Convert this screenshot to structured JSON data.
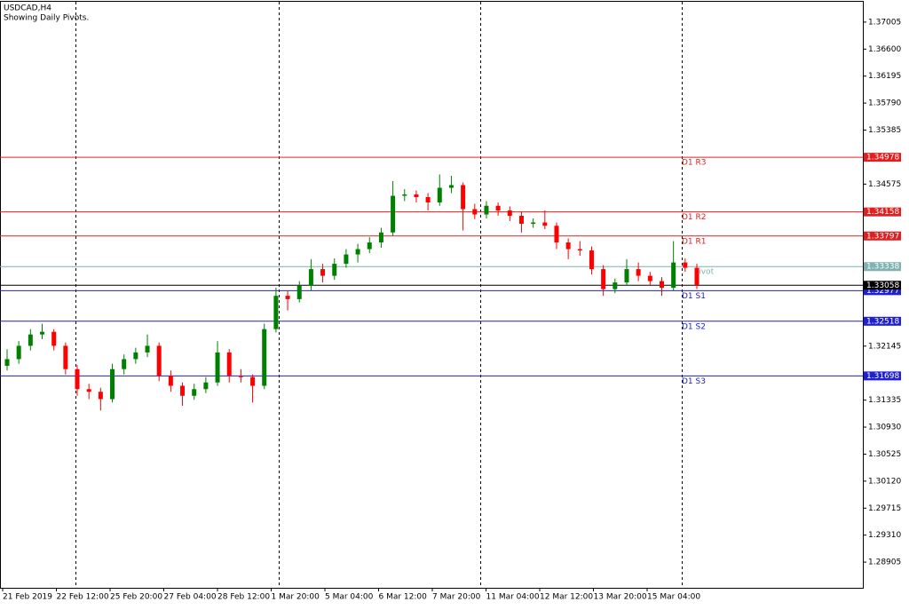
{
  "chart_data": {
    "type": "candlestick",
    "title": "USDCAD,H4",
    "subtitle": "Showing Daily Pivots.",
    "up_color": "#008000",
    "down_color": "#ff0000",
    "ylim": [
      1.2852,
      1.3731
    ],
    "yticks": [
      {
        "value": 1.37005,
        "label": "1.37005"
      },
      {
        "value": 1.366,
        "label": "1.36600"
      },
      {
        "value": 1.36195,
        "label": "1.36195"
      },
      {
        "value": 1.3579,
        "label": "1.35790"
      },
      {
        "value": 1.35385,
        "label": "1.35385"
      },
      {
        "value": 1.34575,
        "label": "1.34575"
      },
      {
        "value": 1.32145,
        "label": "1.32145"
      },
      {
        "value": 1.31335,
        "label": "1.31335"
      },
      {
        "value": 1.3093,
        "label": "1.30930"
      },
      {
        "value": 1.30525,
        "label": "1.30525"
      },
      {
        "value": 1.3012,
        "label": "1.30120"
      },
      {
        "value": 1.29715,
        "label": "1.29715"
      },
      {
        "value": 1.2931,
        "label": "1.29310"
      },
      {
        "value": 1.28905,
        "label": "1.28905"
      }
    ],
    "xtick_labels": [
      "21 Feb 2019",
      "22 Feb 12:00",
      "25 Feb 20:00",
      "27 Feb 04:00",
      "28 Feb 12:00",
      "1 Mar 20:00",
      "5 Mar 04:00",
      "6 Mar 12:00",
      "7 Mar 20:00",
      "11 Mar 04:00",
      "12 Mar 12:00",
      "13 Mar 20:00",
      "15 Mar 04:00"
    ],
    "levels": [
      {
        "name": "D1 R3",
        "value": 1.34978,
        "label": "1.34978",
        "color": "#e02020"
      },
      {
        "name": "D1 R2",
        "value": 1.34158,
        "label": "1.34158",
        "color": "#e02020"
      },
      {
        "name": "D1 R1",
        "value": 1.33797,
        "label": "1.33797",
        "color": "#e02020"
      },
      {
        "name": "Pivot",
        "value": 1.33338,
        "label": "1.33338",
        "color": "#7fb2b2"
      },
      {
        "name": "D1 S1",
        "value": 1.32977,
        "label": "1.32977",
        "color": "#2020d0"
      },
      {
        "name": "D1 S2",
        "value": 1.32518,
        "label": "1.32518",
        "color": "#2020d0"
      },
      {
        "name": "D1 S3",
        "value": 1.31698,
        "label": "1.31698",
        "color": "#2020d0"
      }
    ],
    "current_price": {
      "value": 1.33058,
      "label": "1.33058",
      "color": "#000000"
    },
    "candles": [
      [
        1.3185,
        1.321,
        1.3178,
        1.3195
      ],
      [
        1.3195,
        1.3222,
        1.3188,
        1.3215
      ],
      [
        1.3215,
        1.324,
        1.3208,
        1.3232
      ],
      [
        1.3232,
        1.3248,
        1.3225,
        1.3236
      ],
      [
        1.3236,
        1.324,
        1.3208,
        1.3215
      ],
      [
        1.3215,
        1.322,
        1.3172,
        1.318
      ],
      [
        1.318,
        1.3186,
        1.314,
        1.315
      ],
      [
        1.315,
        1.3158,
        1.3135,
        1.3146
      ],
      [
        1.3146,
        1.3152,
        1.3118,
        1.3135
      ],
      [
        1.3135,
        1.3188,
        1.313,
        1.318
      ],
      [
        1.318,
        1.3202,
        1.3172,
        1.3195
      ],
      [
        1.3195,
        1.3212,
        1.3188,
        1.3205
      ],
      [
        1.3205,
        1.3232,
        1.3198,
        1.3215
      ],
      [
        1.3215,
        1.322,
        1.3162,
        1.317
      ],
      [
        1.317,
        1.3178,
        1.3146,
        1.3155
      ],
      [
        1.3155,
        1.316,
        1.3125,
        1.314
      ],
      [
        1.314,
        1.3158,
        1.3134,
        1.315
      ],
      [
        1.315,
        1.3168,
        1.3144,
        1.316
      ],
      [
        1.316,
        1.3222,
        1.3155,
        1.3205
      ],
      [
        1.3205,
        1.321,
        1.316,
        1.317
      ],
      [
        1.317,
        1.318,
        1.316,
        1.3168
      ],
      [
        1.3168,
        1.3172,
        1.313,
        1.3155
      ],
      [
        1.3155,
        1.3248,
        1.315,
        1.324
      ],
      [
        1.324,
        1.3302,
        1.3235,
        1.329
      ],
      [
        1.329,
        1.3298,
        1.3268,
        1.3285
      ],
      [
        1.3285,
        1.3312,
        1.328,
        1.3305
      ],
      [
        1.3305,
        1.3345,
        1.3298,
        1.333
      ],
      [
        1.333,
        1.3338,
        1.331,
        1.332
      ],
      [
        1.332,
        1.3346,
        1.3314,
        1.3338
      ],
      [
        1.3338,
        1.336,
        1.3332,
        1.3352
      ],
      [
        1.3352,
        1.3368,
        1.334,
        1.336
      ],
      [
        1.336,
        1.3378,
        1.3354,
        1.337
      ],
      [
        1.337,
        1.3392,
        1.3362,
        1.3385
      ],
      [
        1.3385,
        1.3462,
        1.338,
        1.344
      ],
      [
        1.344,
        1.345,
        1.3432,
        1.3442
      ],
      [
        1.3442,
        1.3448,
        1.343,
        1.3438
      ],
      [
        1.3438,
        1.3444,
        1.3418,
        1.343
      ],
      [
        1.343,
        1.3472,
        1.3425,
        1.3452
      ],
      [
        1.3452,
        1.347,
        1.3444,
        1.3456
      ],
      [
        1.3456,
        1.346,
        1.3388,
        1.342
      ],
      [
        1.342,
        1.3428,
        1.3405,
        1.3412
      ],
      [
        1.3412,
        1.3432,
        1.3406,
        1.3425
      ],
      [
        1.3425,
        1.343,
        1.341,
        1.3418
      ],
      [
        1.3418,
        1.3424,
        1.3402,
        1.341
      ],
      [
        1.341,
        1.3416,
        1.3385,
        1.3398
      ],
      [
        1.3398,
        1.3406,
        1.3392,
        1.34
      ],
      [
        1.34,
        1.3418,
        1.339,
        1.3395
      ],
      [
        1.3395,
        1.34,
        1.336,
        1.337
      ],
      [
        1.337,
        1.3376,
        1.3345,
        1.336
      ],
      [
        1.336,
        1.3372,
        1.335,
        1.3358
      ],
      [
        1.3358,
        1.3364,
        1.3322,
        1.333
      ],
      [
        1.333,
        1.3336,
        1.329,
        1.33
      ],
      [
        1.33,
        1.3316,
        1.3294,
        1.331
      ],
      [
        1.331,
        1.3345,
        1.3305,
        1.333
      ],
      [
        1.333,
        1.334,
        1.3312,
        1.332
      ],
      [
        1.332,
        1.3326,
        1.3305,
        1.3312
      ],
      [
        1.3312,
        1.3318,
        1.329,
        1.3302
      ],
      [
        1.3302,
        1.3372,
        1.3298,
        1.334
      ],
      [
        1.334,
        1.3346,
        1.3326,
        1.3332
      ],
      [
        1.3332,
        1.3338,
        1.33,
        1.3306
      ]
    ]
  }
}
